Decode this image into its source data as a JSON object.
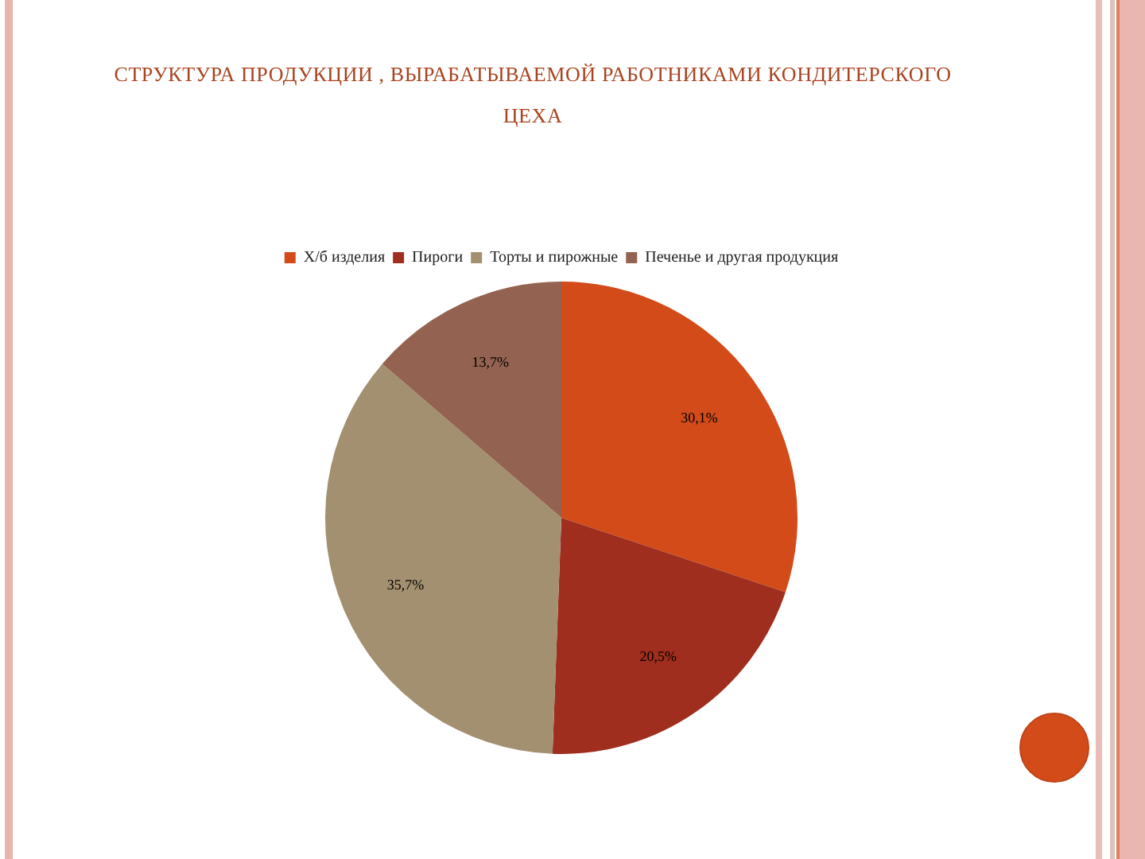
{
  "chart_data": {
    "type": "pie",
    "title": "СТРУКТУРА ПРОДУКЦИИ , ВЫРАБАТЫВАЕМОЙ РАБОТНИКАМИ КОНДИТЕРСКОГО ЦЕХА",
    "categories": [
      "Х/б изделия",
      "Пироги",
      "Торты и пирожные",
      "Печенье и другая продукция"
    ],
    "values": [
      30.1,
      20.5,
      35.7,
      13.7
    ],
    "colors": [
      "#d24b19",
      "#a02e1e",
      "#a39070",
      "#946250"
    ],
    "value_labels": [
      "30,1%",
      "20,5%",
      "35,7%",
      "13,7%"
    ],
    "legend": "top"
  }
}
